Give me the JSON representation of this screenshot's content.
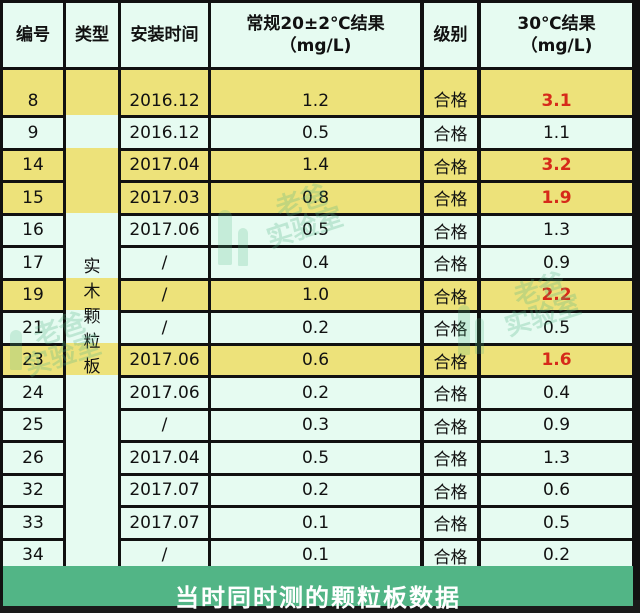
{
  "table": {
    "headers": {
      "id": "编号",
      "type": "类型",
      "install_time": "安装时间",
      "normal_result_line1": "常规20±2℃结果",
      "normal_result_line2": "（mg/L)",
      "grade": "级别",
      "hot_result_line1": "30℃结果",
      "hot_result_line2": "（mg/L)"
    },
    "type_label": [
      "实",
      "木",
      "颗",
      "粒",
      "板"
    ],
    "rows": [
      {
        "id": "8",
        "time": "2016.12",
        "normal": "1.2",
        "grade": "合格",
        "hot": "3.1",
        "highlight": true,
        "hot_exceeds": true
      },
      {
        "id": "9",
        "time": "2016.12",
        "normal": "0.5",
        "grade": "合格",
        "hot": "1.1",
        "highlight": false,
        "hot_exceeds": false
      },
      {
        "id": "14",
        "time": "2017.04",
        "normal": "1.4",
        "grade": "合格",
        "hot": "3.2",
        "highlight": true,
        "hot_exceeds": true
      },
      {
        "id": "15",
        "time": "2017.03",
        "normal": "0.8",
        "grade": "合格",
        "hot": "1.9",
        "highlight": true,
        "hot_exceeds": true
      },
      {
        "id": "16",
        "time": "2017.06",
        "normal": "0.5",
        "grade": "合格",
        "hot": "1.3",
        "highlight": false,
        "hot_exceeds": false
      },
      {
        "id": "17",
        "time": "/",
        "normal": "0.4",
        "grade": "合格",
        "hot": "0.9",
        "highlight": false,
        "hot_exceeds": false
      },
      {
        "id": "19",
        "time": "/",
        "normal": "1.0",
        "grade": "合格",
        "hot": "2.2",
        "highlight": true,
        "hot_exceeds": true
      },
      {
        "id": "21",
        "time": "/",
        "normal": "0.2",
        "grade": "合格",
        "hot": "0.5",
        "highlight": false,
        "hot_exceeds": false
      },
      {
        "id": "23",
        "time": "2017.06",
        "normal": "0.6",
        "grade": "合格",
        "hot": "1.6",
        "highlight": true,
        "hot_exceeds": true
      },
      {
        "id": "24",
        "time": "2017.06",
        "normal": "0.2",
        "grade": "合格",
        "hot": "0.4",
        "highlight": false,
        "hot_exceeds": false
      },
      {
        "id": "25",
        "time": "/",
        "normal": "0.3",
        "grade": "合格",
        "hot": "0.9",
        "highlight": false,
        "hot_exceeds": false
      },
      {
        "id": "26",
        "time": "2017.04",
        "normal": "0.5",
        "grade": "合格",
        "hot": "1.3",
        "highlight": false,
        "hot_exceeds": false
      },
      {
        "id": "32",
        "time": "2017.07",
        "normal": "0.2",
        "grade": "合格",
        "hot": "0.6",
        "highlight": false,
        "hot_exceeds": false
      },
      {
        "id": "33",
        "time": "2017.07",
        "normal": "0.1",
        "grade": "合格",
        "hot": "0.5",
        "highlight": false,
        "hot_exceeds": false
      },
      {
        "id": "34",
        "time": "/",
        "normal": "0.1",
        "grade": "合格",
        "hot": "0.2",
        "highlight": false,
        "hot_exceeds": false
      }
    ]
  },
  "banner": {
    "text": "当时同时测的颗粒板数据"
  },
  "watermark": {
    "line1": "老爸",
    "line2": "实验室"
  },
  "colors": {
    "highlight_row": "#ede27a",
    "normal_row": "#e6fbf1",
    "exceed_text": "#d62a1a",
    "banner_bg": "#52b586",
    "grid_line": "#111111"
  }
}
